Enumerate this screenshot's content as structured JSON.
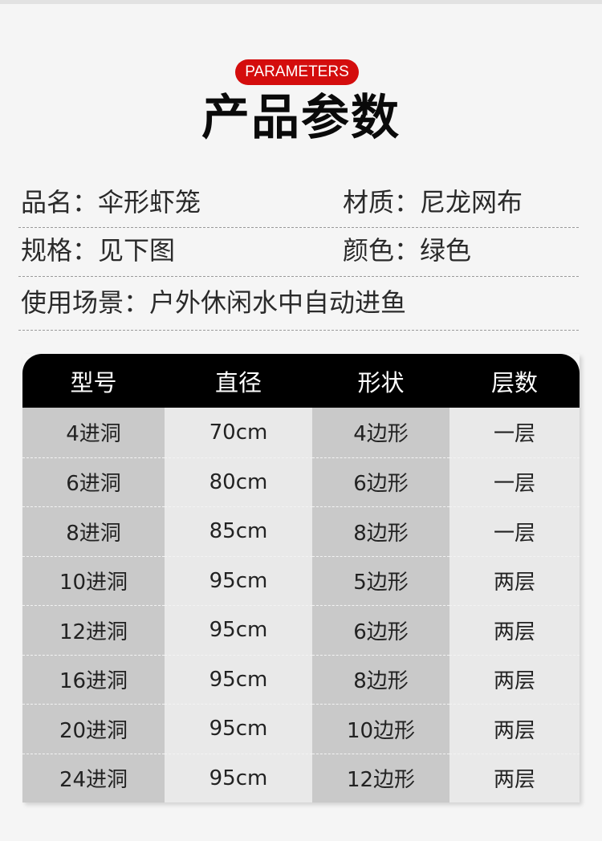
{
  "header": {
    "badge": "PARAMETERS",
    "title": "产品参数"
  },
  "info": {
    "name": "品名：伞形虾笼",
    "material": "材质：尼龙网布",
    "spec": "规格：见下图",
    "color": "颜色：绿色",
    "usage": "使用场景：户外休闲水中自动进鱼"
  },
  "colors": {
    "badge": "#d40d0d",
    "table_header": "#000000",
    "cell_dark": "#c9c9c9",
    "cell_light": "#e9e9e9"
  },
  "table": {
    "columns": [
      "型号",
      "直径",
      "形状",
      "层数"
    ],
    "rows": [
      [
        "4进洞",
        "70cm",
        "4边形",
        "一层"
      ],
      [
        "6进洞",
        "80cm",
        "6边形",
        "一层"
      ],
      [
        "8进洞",
        "85cm",
        "8边形",
        "一层"
      ],
      [
        "10进洞",
        "95cm",
        "5边形",
        "两层"
      ],
      [
        "12进洞",
        "95cm",
        "6边形",
        "两层"
      ],
      [
        "16进洞",
        "95cm",
        "8边形",
        "两层"
      ],
      [
        "20进洞",
        "95cm",
        "10边形",
        "两层"
      ],
      [
        "24进洞",
        "95cm",
        "12边形",
        "两层"
      ]
    ]
  }
}
